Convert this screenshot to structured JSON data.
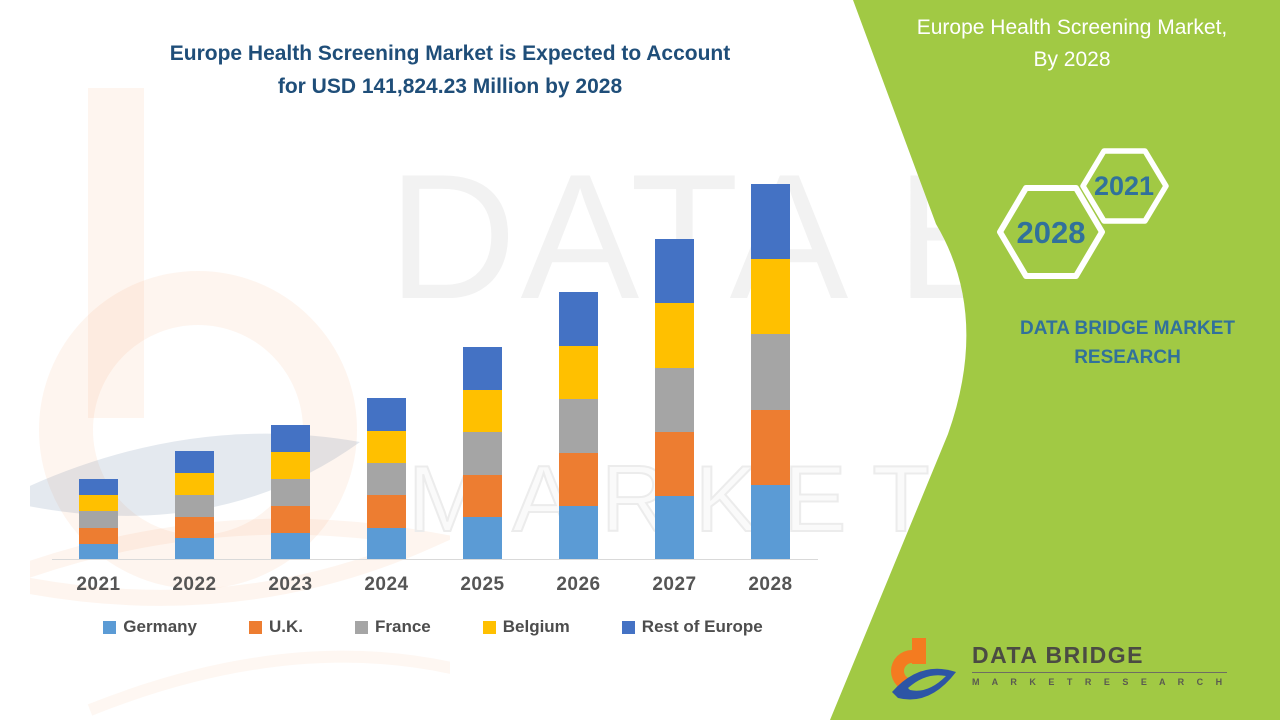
{
  "header": {
    "chart_title_line1": "Europe Health Screening Market is Expected to Account",
    "chart_title_line2": "for USD 141,824.23 Million by 2028"
  },
  "side_panel": {
    "title_line1": "Europe Health Screening Market,",
    "title_line2": "By 2028",
    "hexagon_top_label": "2021",
    "hexagon_bottom_label": "2028",
    "brand_line1": "DATA BRIDGE MARKET",
    "brand_line2": "RESEARCH",
    "background_color": "#A1C944",
    "text_color": "#31719B"
  },
  "watermark": {
    "line1": "DATA BRIDGE",
    "line2": "MARKET RESEARCH"
  },
  "logo": {
    "name": "DATA BRIDGE",
    "subtitle": "M A R K E T   R E S E A R C H",
    "orange": "#F47B20",
    "blue": "#2D55A5"
  },
  "colors": {
    "title_navy": "#1F4E79",
    "axis_gray": "#D9D9D9",
    "label_gray": "#555555"
  },
  "chart_data": {
    "type": "bar",
    "stacked": true,
    "title": "Europe Health Screening Market is Expected to Account for USD 141,824.23 Million by 2028",
    "unit": "USD Million",
    "categories": [
      "2021",
      "2022",
      "2023",
      "2024",
      "2025",
      "2026",
      "2027",
      "2028"
    ],
    "series": [
      {
        "name": "Germany",
        "color": "#5B9BD5",
        "values": [
          6110,
          8200,
          10206,
          12200,
          16068,
          20218,
          24194,
          28365
        ]
      },
      {
        "name": "U.K.",
        "color": "#ED7D31",
        "values": [
          6110,
          8200,
          10206,
          12200,
          16068,
          20218,
          24194,
          28365
        ]
      },
      {
        "name": "France",
        "color": "#A5A5A5",
        "values": [
          6110,
          8200,
          10206,
          12200,
          16068,
          20218,
          24194,
          28365
        ]
      },
      {
        "name": "Belgium",
        "color": "#FFC000",
        "values": [
          6110,
          8200,
          10206,
          12200,
          16068,
          20218,
          24194,
          28365
        ]
      },
      {
        "name": "Rest of Europe",
        "color": "#4472C4",
        "values": [
          6110,
          8200,
          10206,
          12200,
          16068,
          20218,
          24194,
          28365
        ]
      }
    ],
    "totals_est": [
      30550,
      41000,
      51030,
      61000,
      80340,
      101090,
      120970,
      141824.23
    ],
    "labeled_total_2028": 141824.23,
    "values_note": "Per-country values estimated from segment heights; each bar is split into five visually equal segments. Only the 2028 total (141,824.23) is labeled on screen.",
    "ylim": [
      0,
      150000
    ],
    "y_axis_shown": false,
    "gridlines": false,
    "legend_position": "bottom",
    "stack_order_bottom_to_top": [
      "Germany",
      "U.K.",
      "France",
      "Belgium",
      "Rest of Europe"
    ]
  }
}
